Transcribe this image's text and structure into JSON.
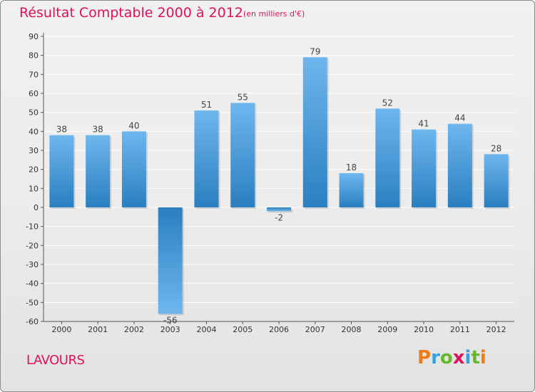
{
  "header": {
    "title": "Résultat Comptable 2000 à 2012",
    "subtitle": "(en milliers d'€)"
  },
  "footer": {
    "commune": "LAVOURS",
    "brand": "Proxiti",
    "brand_colors": [
      "#f07c14",
      "#3aa0dc",
      "#66b82c",
      "#e0105a",
      "#3aa0dc",
      "#66b82c",
      "#f07c14"
    ]
  },
  "colors": {
    "bar_top": "#6fb6ee",
    "bar_bottom": "#2a7fc0",
    "accent": "#e0105a",
    "grid": "#ffffff",
    "axis": "#555555"
  },
  "chart_data": {
    "type": "bar",
    "title": "Résultat Comptable 2000 à 2012",
    "unit": "en milliers d'€",
    "categories": [
      "2000",
      "2001",
      "2002",
      "2003",
      "2004",
      "2005",
      "2006",
      "2007",
      "2008",
      "2009",
      "2010",
      "2011",
      "2012"
    ],
    "values": [
      38,
      38,
      40,
      -56,
      51,
      55,
      -2,
      79,
      18,
      52,
      41,
      44,
      28
    ],
    "ylim": [
      -60,
      90
    ],
    "yticks": [
      90,
      80,
      70,
      60,
      50,
      40,
      30,
      20,
      10,
      0,
      -10,
      -20,
      -30,
      -40,
      -50,
      -60
    ],
    "grid": true,
    "xlabel": "",
    "ylabel": ""
  }
}
